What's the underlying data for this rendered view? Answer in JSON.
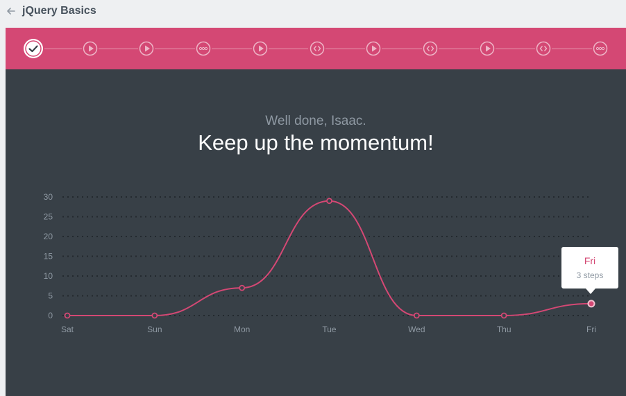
{
  "course": {
    "title": "jQuery Basics"
  },
  "progress": {
    "steps": [
      {
        "type": "completed",
        "icon": "check-icon"
      },
      {
        "type": "video",
        "icon": "play-icon"
      },
      {
        "type": "video",
        "icon": "play-icon"
      },
      {
        "type": "quiz",
        "icon": "ellipsis-icon"
      },
      {
        "type": "video",
        "icon": "play-icon"
      },
      {
        "type": "code",
        "icon": "code-icon"
      },
      {
        "type": "video",
        "icon": "play-icon"
      },
      {
        "type": "code",
        "icon": "code-icon"
      },
      {
        "type": "video",
        "icon": "play-icon"
      },
      {
        "type": "code",
        "icon": "code-icon"
      },
      {
        "type": "quiz",
        "icon": "ellipsis-icon"
      }
    ]
  },
  "message": {
    "greeting": "Well done, Isaac.",
    "headline": "Keep up the momentum!"
  },
  "tooltip": {
    "day": "Fri",
    "steps": "3 steps"
  },
  "colors": {
    "accent": "#d44874",
    "panel": "#384047",
    "muted": "#8f99a3"
  },
  "chart_data": {
    "type": "line",
    "categories": [
      "Sat",
      "Sun",
      "Mon",
      "Tue",
      "Wed",
      "Thu",
      "Fri"
    ],
    "values": [
      0,
      0,
      7,
      29,
      0,
      0,
      3
    ],
    "yticks": [
      0,
      5,
      10,
      15,
      20,
      25,
      30
    ],
    "ylim": [
      0,
      30
    ],
    "grid": true,
    "title": "",
    "xlabel": "",
    "ylabel": ""
  }
}
